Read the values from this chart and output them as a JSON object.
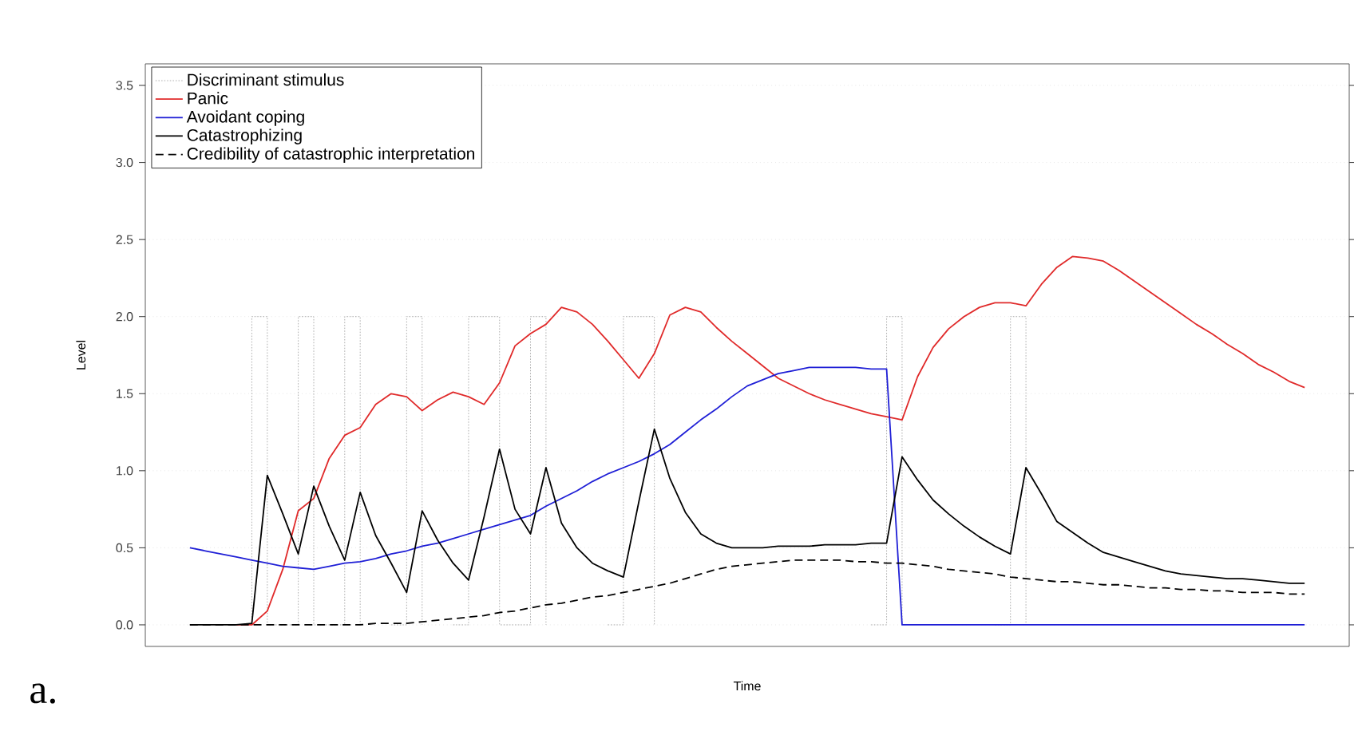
{
  "chart_data": {
    "type": "line",
    "xlabel": "Time",
    "ylabel": "Level",
    "annotations": [
      "a."
    ],
    "categories": [
      null,
      null,
      null,
      null,
      null,
      null,
      null,
      null,
      null,
      null,
      null,
      null,
      null,
      null,
      null,
      null,
      null,
      null,
      null,
      null,
      null,
      null,
      null,
      null,
      null,
      null,
      null,
      null,
      null,
      null,
      null,
      null,
      null,
      null,
      null,
      null,
      null,
      null,
      null,
      null,
      null,
      null,
      null,
      null,
      null,
      null,
      null,
      null,
      null,
      null,
      null,
      null,
      null,
      null,
      null,
      null,
      null,
      null,
      null,
      null,
      null,
      null,
      null,
      null,
      null,
      null,
      null,
      null,
      null,
      null,
      null,
      null,
      null
    ],
    "ylim": [
      -0.14,
      3.64
    ],
    "yticks": [
      {
        "value": 0,
        "label": "0.0"
      },
      0.5,
      {
        "value": 1,
        "label": "1.0"
      },
      1.5,
      {
        "value": 2,
        "label": "2.0"
      },
      2.5,
      {
        "value": 3,
        "label": "3.0"
      },
      3.5
    ],
    "tick_labels": "y",
    "grid": "y",
    "legend": "top left",
    "marker": "none",
    "series": [
      {
        "name": "Discriminant stimulus",
        "type": "step",
        "color": "#9a9a9a",
        "line_style": "dotted",
        "values": [
          null,
          null,
          null,
          0,
          2,
          0,
          0,
          2,
          0,
          0,
          2,
          0,
          null,
          0,
          2,
          0,
          null,
          0,
          2,
          2,
          0,
          0,
          2,
          0,
          null,
          null,
          null,
          0,
          2,
          2,
          0,
          null,
          null,
          null,
          null,
          null,
          null,
          null,
          null,
          null,
          null,
          null,
          null,
          null,
          0,
          2,
          0,
          null,
          null,
          null,
          null,
          null,
          0,
          2,
          0,
          null,
          null,
          null,
          null,
          null,
          null,
          null,
          null,
          null,
          null,
          null,
          null,
          null,
          null,
          null,
          null,
          null,
          null
        ]
      },
      {
        "name": "Panic",
        "color": "#e02a2a",
        "line_style": "solid",
        "values": [
          null,
          null,
          null,
          0,
          0,
          0.09,
          0.36,
          0.74,
          0.82,
          1.08,
          1.23,
          1.28,
          1.43,
          1.5,
          1.48,
          1.39,
          1.46,
          1.51,
          1.48,
          1.43,
          1.57,
          1.81,
          1.89,
          1.95,
          2.06,
          2.03,
          1.95,
          1.84,
          1.72,
          1.6,
          1.76,
          2.01,
          2.06,
          2.03,
          1.93,
          1.84,
          1.76,
          1.68,
          1.6,
          1.55,
          1.5,
          1.46,
          1.43,
          1.4,
          1.37,
          1.35,
          1.33,
          1.61,
          1.8,
          1.92,
          2.0,
          2.06,
          2.09,
          2.09,
          2.07,
          2.21,
          2.32,
          2.39,
          2.38,
          2.36,
          2.3,
          2.23,
          2.16,
          2.09,
          2.02,
          1.95,
          1.89,
          1.82,
          1.76,
          1.69,
          1.64,
          1.58,
          1.54
        ]
      },
      {
        "name": "Avoidant coping",
        "color": "#1f1fd6",
        "line_style": "solid",
        "values": [
          0.5,
          0.48,
          0.46,
          0.44,
          0.42,
          0.4,
          0.38,
          0.37,
          0.36,
          0.38,
          0.4,
          0.41,
          0.43,
          0.46,
          0.48,
          0.51,
          0.53,
          0.56,
          0.59,
          0.62,
          0.65,
          0.68,
          0.71,
          0.77,
          0.82,
          0.87,
          0.93,
          0.98,
          1.02,
          1.06,
          1.11,
          1.17,
          1.25,
          1.33,
          1.4,
          1.48,
          1.55,
          1.59,
          1.63,
          1.65,
          1.67,
          1.67,
          1.67,
          1.67,
          1.66,
          1.66,
          0,
          0,
          0,
          0,
          0,
          0,
          0,
          0,
          0,
          0,
          0,
          0,
          0,
          0,
          0,
          0,
          0,
          0,
          0,
          0,
          0,
          0,
          0,
          0,
          0,
          0,
          0
        ]
      },
      {
        "name": "Catastrophizing",
        "color": "#000000",
        "line_style": "solid",
        "values": [
          0,
          0,
          0,
          0,
          0.01,
          0.97,
          0.72,
          0.46,
          0.9,
          0.64,
          0.42,
          0.86,
          0.58,
          0.4,
          0.21,
          0.74,
          0.55,
          0.4,
          0.29,
          0.7,
          1.14,
          0.75,
          0.59,
          1.02,
          0.66,
          0.5,
          0.4,
          0.35,
          0.31,
          0.8,
          1.27,
          0.95,
          0.73,
          0.59,
          0.53,
          0.5,
          0.5,
          0.5,
          0.51,
          0.51,
          0.51,
          0.52,
          0.52,
          0.52,
          0.53,
          0.53,
          1.09,
          0.94,
          0.81,
          0.72,
          0.64,
          0.57,
          0.51,
          0.46,
          1.02,
          0.85,
          0.67,
          0.6,
          0.53,
          0.47,
          0.44,
          0.41,
          0.38,
          0.35,
          0.33,
          0.32,
          0.31,
          0.3,
          0.3,
          0.29,
          0.28,
          0.27,
          0.27
        ]
      },
      {
        "name": "Credibility of catastrophic interpretation",
        "color": "#000000",
        "line_style": "dashed",
        "values": [
          0,
          0,
          0,
          0,
          0,
          0,
          0,
          0,
          0,
          0,
          0,
          0,
          0.01,
          0.01,
          0.01,
          0.02,
          0.03,
          0.04,
          0.05,
          0.06,
          0.08,
          0.09,
          0.11,
          0.13,
          0.14,
          0.16,
          0.18,
          0.19,
          0.21,
          0.23,
          0.25,
          0.27,
          0.3,
          0.33,
          0.36,
          0.38,
          0.39,
          0.4,
          0.41,
          0.42,
          0.42,
          0.42,
          0.42,
          0.41,
          0.41,
          0.4,
          0.4,
          0.39,
          0.38,
          0.36,
          0.35,
          0.34,
          0.33,
          0.31,
          0.3,
          0.29,
          0.28,
          0.28,
          0.27,
          0.26,
          0.26,
          0.25,
          0.24,
          0.24,
          0.23,
          0.23,
          0.22,
          0.22,
          0.21,
          0.21,
          0.21,
          0.2,
          0.2
        ]
      }
    ]
  }
}
